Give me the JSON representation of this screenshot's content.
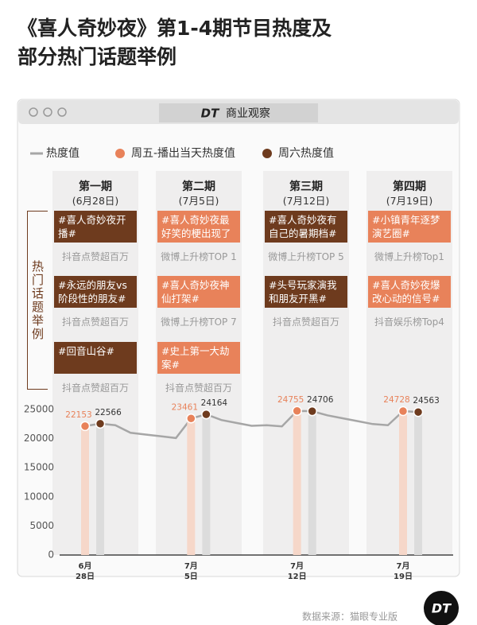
{
  "title": "《喜人奇妙夜》第1-4期节目热度及部分热门话题举例",
  "brand": {
    "mark": "DT",
    "name": "商业观察"
  },
  "topics_label": "热门话题举例",
  "episodes": [
    {
      "name": "第一期",
      "date": "(6月28日)",
      "color": "#6e3b1e",
      "topics": [
        {
          "text": "#喜人奇妙夜开播#",
          "note": "抖音点赞超百万"
        },
        {
          "text": "#永远的朋友vs阶段性的朋友#",
          "note": "抖音点赞超百万"
        },
        {
          "text": "#回音山谷#",
          "note": "抖音点赞超百万"
        }
      ]
    },
    {
      "name": "第二期",
      "date": "(7月5日)",
      "color": "#e8825a",
      "topics": [
        {
          "text": "#喜人奇妙夜最好笑的梗出现了#",
          "note": "微博上升榜TOP 1"
        },
        {
          "text": "#喜人奇妙夜神仙打架#",
          "note": "微博上升榜TOP 7"
        },
        {
          "text": "#史上第一大劫案#",
          "note": "抖音点赞超百万"
        }
      ]
    },
    {
      "name": "第三期",
      "date": "(7月12日)",
      "color": "#6e3b1e",
      "topics": [
        {
          "text": "#喜人奇妙夜有自己的暑期档#",
          "note": "微博上升榜TOP 5"
        },
        {
          "text": "#头号玩家演我和朋友开黑#",
          "note": "抖音点赞超百万"
        }
      ]
    },
    {
      "name": "第四期",
      "date": "(7月19日)",
      "color": "#e8825a",
      "topics": [
        {
          "text": "#小镇青年逐梦演艺圈#",
          "note": "微博上升榜Top1"
        },
        {
          "text": "#喜人奇妙夜爆改心动的信号#",
          "note": "抖音娱乐榜Top4"
        }
      ]
    }
  ],
  "chart_data": {
    "type": "line",
    "categories": [
      "6月\n28日",
      null,
      null,
      null,
      null,
      null,
      null,
      "7月\n5日",
      null,
      null,
      null,
      null,
      null,
      null,
      "7月\n12日",
      null,
      null,
      null,
      null,
      null,
      null,
      "7月\n19日",
      null
    ],
    "series": [
      {
        "name": "热度值",
        "color": "#a6a6a6",
        "values": [
          22153,
          22566,
          22300,
          21000,
          20700,
          20400,
          20100,
          23461,
          24164,
          23200,
          22700,
          22200,
          22300,
          22100,
          24755,
          24706,
          24000,
          23500,
          23000,
          22500,
          22300,
          24728,
          24563
        ]
      },
      {
        "name": "周五-播出当天热度值",
        "color": "#e8825a",
        "values": [
          22153,
          null,
          null,
          null,
          null,
          null,
          null,
          23461,
          null,
          null,
          null,
          null,
          null,
          null,
          24755,
          null,
          null,
          null,
          null,
          null,
          null,
          24728,
          null
        ]
      },
      {
        "name": "周六热度值",
        "color": "#6e3b1e",
        "values": [
          null,
          22566,
          null,
          null,
          null,
          null,
          null,
          null,
          24164,
          null,
          null,
          null,
          null,
          null,
          null,
          24706,
          null,
          null,
          null,
          null,
          null,
          null,
          24563
        ]
      }
    ],
    "ylim": [
      0,
      25000
    ],
    "yticks": [
      0,
      5000,
      10000,
      15000,
      20000,
      25000
    ],
    "grid": false
  },
  "source": "数据来源：猫眼专业版",
  "logo": "DT"
}
